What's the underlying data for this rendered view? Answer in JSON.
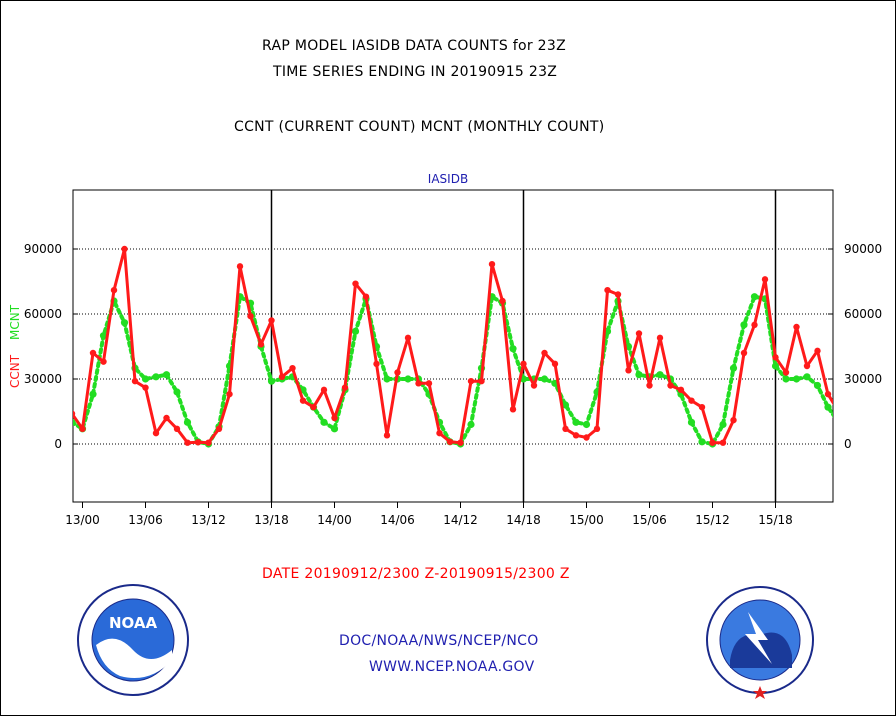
{
  "header": {
    "line1": "RAP MODEL IASIDB DATA COUNTS for 23Z",
    "line2": "TIME SERIES ENDING IN 20190915 23Z",
    "line3": "CCNT (CURRENT COUNT) MCNT (MONTHLY COUNT)"
  },
  "footer": {
    "date_range": "DATE 20190912/2300 Z-20190915/2300 Z",
    "org": "DOC/NOAA/NWS/NCEP/NCO",
    "url": "WWW.NCEP.NOAA.GOV"
  },
  "logos": {
    "noaa_text": "NOAA",
    "noaa_ring": "NATIONAL OCEANIC AND ATMOSPHERIC ADMINISTRATION • U.S. DEPARTMENT OF COMMERCE •",
    "nws_ring": "NATIONAL WEATHER SERVICE"
  },
  "colors": {
    "ccnt": "#ff1a1a",
    "mcnt": "#22dd22",
    "title": "#2020b0"
  },
  "chart_data": {
    "type": "line",
    "title": "IASIDB",
    "ylabel_left_parts": [
      "CCNT",
      "MCNT"
    ],
    "ylim": [
      -30000,
      115000
    ],
    "xlim": [
      0,
      72
    ],
    "yticks": [
      0,
      30000,
      60000,
      90000
    ],
    "xticks": [
      {
        "x": 0,
        "label": "13/00"
      },
      {
        "x": 6,
        "label": "13/06"
      },
      {
        "x": 12,
        "label": "13/12"
      },
      {
        "x": 18,
        "label": "13/18"
      },
      {
        "x": 24,
        "label": "14/00"
      },
      {
        "x": 30,
        "label": "14/06"
      },
      {
        "x": 36,
        "label": "14/12"
      },
      {
        "x": 42,
        "label": "14/18"
      },
      {
        "x": 48,
        "label": "15/00"
      },
      {
        "x": 54,
        "label": "15/06"
      },
      {
        "x": 60,
        "label": "15/12"
      },
      {
        "x": 66,
        "label": "15/18"
      }
    ],
    "day_boundaries": [
      18,
      42,
      66
    ],
    "grid": true,
    "series": [
      {
        "name": "CCNT",
        "x": [
          -1,
          0,
          1,
          2,
          3,
          4,
          5,
          6,
          7,
          8,
          9,
          10,
          11,
          12,
          13,
          14,
          15,
          16,
          17,
          18,
          19,
          20,
          21,
          22,
          23,
          24,
          25,
          26,
          27,
          28,
          29,
          30,
          31,
          32,
          33,
          34,
          35,
          36,
          37,
          38,
          39,
          40,
          41,
          42,
          43,
          44,
          45,
          46,
          47,
          48,
          49,
          50,
          51,
          52,
          53,
          54,
          55,
          56,
          57,
          58,
          59,
          60,
          61,
          62,
          63,
          64,
          65,
          66,
          67,
          68,
          69,
          70,
          71,
          72
        ],
        "values": [
          14000,
          7000,
          42000,
          38000,
          71000,
          90000,
          29000,
          26000,
          5000,
          12000,
          7000,
          600,
          800,
          600,
          7000,
          23000,
          82000,
          59000,
          46000,
          57000,
          31000,
          35000,
          20000,
          17000,
          25000,
          12000,
          26000,
          74000,
          68000,
          37000,
          4000,
          33000,
          49000,
          28000,
          28000,
          5000,
          1000,
          600,
          29000,
          29000,
          83000,
          66000,
          16000,
          37000,
          27000,
          42000,
          37000,
          7000,
          4000,
          3000,
          7000,
          71000,
          69000,
          34000,
          51000,
          27000,
          49000,
          27000,
          25000,
          20000,
          17000,
          600,
          600,
          11000,
          42000,
          55000,
          76000,
          40000,
          33000,
          54000,
          36000,
          43000,
          23000,
          15000
        ]
      },
      {
        "name": "MCNT",
        "x": [
          -1,
          0,
          1,
          2,
          3,
          4,
          5,
          6,
          7,
          8,
          9,
          10,
          11,
          12,
          13,
          14,
          15,
          16,
          17,
          18,
          19,
          20,
          21,
          22,
          23,
          24,
          25,
          26,
          27,
          28,
          29,
          30,
          31,
          32,
          33,
          34,
          35,
          36,
          37,
          38,
          39,
          40,
          41,
          42,
          43,
          44,
          45,
          46,
          47,
          48,
          49,
          50,
          51,
          52,
          53,
          54,
          55,
          56,
          57,
          58,
          59,
          60,
          61,
          62,
          63,
          64,
          65,
          66,
          67,
          68,
          69,
          70,
          71,
          72
        ],
        "values": [
          10000,
          7000,
          23000,
          50000,
          66000,
          56000,
          35000,
          30000,
          31000,
          32000,
          24000,
          10000,
          1000,
          0,
          8000,
          36000,
          68000,
          65000,
          45000,
          29000,
          30000,
          31000,
          25000,
          17000,
          10000,
          7000,
          25000,
          52000,
          67000,
          45000,
          30000,
          30000,
          30000,
          30000,
          23000,
          10000,
          1000,
          0,
          9000,
          35000,
          68000,
          65000,
          44000,
          30000,
          30000,
          30000,
          28000,
          18000,
          10000,
          9000,
          24000,
          52000,
          66000,
          45000,
          32000,
          31000,
          32000,
          30000,
          23000,
          10000,
          1000,
          0,
          9000,
          35000,
          55000,
          68000,
          67000,
          36000,
          30000,
          30000,
          31000,
          27000,
          17000,
          10000
        ]
      }
    ]
  }
}
